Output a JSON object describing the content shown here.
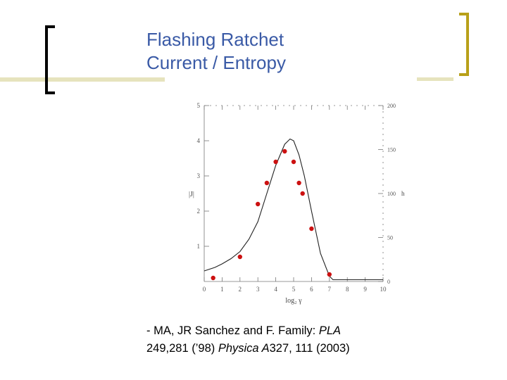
{
  "slide": {
    "title_line1": "Flashing Ratchet",
    "title_line2": "Current / Entropy",
    "colors": {
      "title": "#3a5aa6",
      "bracket_left": "#000000",
      "bracket_right": "#b8a019",
      "rule": "#e6e3bd",
      "points": "#cc1111"
    }
  },
  "citation": {
    "line1_prefix": "- MA, JR Sanchez and F. Family: ",
    "line1_journal": "PLA",
    "line2_start": "249,281 (’98) ",
    "line2_journal": "Physica A",
    "line2_rest": "327, 111 (2003)"
  },
  "chart_data": {
    "type": "scatter",
    "xlabel": "log₂ γ",
    "ylabel": "|J|",
    "y2label": "h",
    "xlim": [
      0,
      10
    ],
    "ylim": [
      0,
      5
    ],
    "y2lim": [
      0,
      200
    ],
    "xticks": [
      "0",
      "1",
      "2",
      "3",
      "4",
      "5",
      "6",
      "7",
      "8",
      "9",
      "10"
    ],
    "yticks": [
      "1",
      "2",
      "3",
      "4",
      "5"
    ],
    "y2ticks": [
      "0",
      "50",
      "100",
      "150",
      "200"
    ],
    "series": [
      {
        "kind": "points",
        "points": [
          [
            0.5,
            0.1
          ],
          [
            2,
            0.7
          ],
          [
            3,
            2.2
          ],
          [
            3.5,
            2.8
          ],
          [
            4,
            3.4
          ],
          [
            4.5,
            3.7
          ],
          [
            5,
            3.4
          ],
          [
            5.3,
            2.8
          ],
          [
            5.5,
            2.5
          ],
          [
            6,
            1.5
          ],
          [
            7,
            0.2
          ]
        ]
      },
      {
        "kind": "curve",
        "points": [
          [
            0,
            0.3
          ],
          [
            0.6,
            0.4
          ],
          [
            1,
            0.5
          ],
          [
            1.5,
            0.65
          ],
          [
            2,
            0.85
          ],
          [
            2.5,
            1.2
          ],
          [
            3,
            1.7
          ],
          [
            3.5,
            2.5
          ],
          [
            4,
            3.3
          ],
          [
            4.5,
            3.9
          ],
          [
            4.8,
            4.05
          ],
          [
            5,
            4.0
          ],
          [
            5.3,
            3.6
          ],
          [
            5.6,
            3.0
          ],
          [
            6,
            2.0
          ],
          [
            6.5,
            0.8
          ],
          [
            7,
            0.15
          ],
          [
            7.2,
            0.05
          ],
          [
            10,
            0.05
          ]
        ]
      }
    ]
  }
}
